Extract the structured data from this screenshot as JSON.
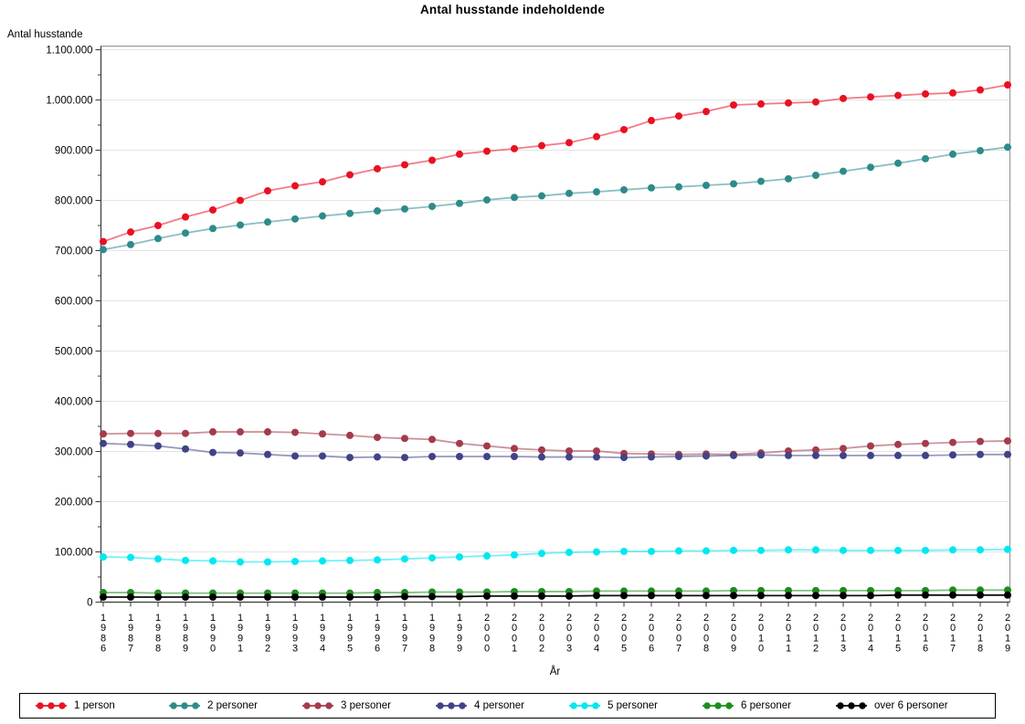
{
  "chart_data": {
    "type": "line",
    "title": "Antal husstande indeholdende",
    "ylabel": "Antal husstande",
    "xlabel": "År",
    "grid": "horizontal-major",
    "legend_position": "bottom",
    "ylim": [
      0,
      1100000
    ],
    "ytick_step": 100000,
    "ytick_minor_step": 50000,
    "ytick_labels": [
      "0",
      "100.000",
      "200.000",
      "300.000",
      "400.000",
      "500.000",
      "600.000",
      "700.000",
      "800.000",
      "900.000",
      "1.000.000",
      "1.100.000"
    ],
    "x": [
      "1986",
      "1987",
      "1988",
      "1989",
      "1990",
      "1991",
      "1992",
      "1993",
      "1994",
      "1995",
      "1996",
      "1997",
      "1998",
      "1999",
      "2000",
      "2001",
      "2002",
      "2003",
      "2004",
      "2005",
      "2006",
      "2007",
      "2008",
      "2009",
      "2010",
      "2011",
      "2012",
      "2013",
      "2014",
      "2015",
      "2016",
      "2017",
      "2018",
      "2019"
    ],
    "series": [
      {
        "name": "1 person",
        "color": "#e81123",
        "values": [
          718000,
          737000,
          750000,
          767000,
          781000,
          800000,
          819000,
          829000,
          837000,
          851000,
          863000,
          871000,
          880000,
          892000,
          898000,
          903000,
          909000,
          915000,
          927000,
          941000,
          959000,
          968000,
          977000,
          990000,
          992000,
          994000,
          996000,
          1003000,
          1006000,
          1009000,
          1012000,
          1014000,
          1020000,
          1030000
        ]
      },
      {
        "name": "2 personer",
        "color": "#2e8b8b",
        "values": [
          702000,
          712000,
          724000,
          735000,
          744000,
          751000,
          757000,
          763000,
          769000,
          774000,
          779000,
          783000,
          788000,
          794000,
          801000,
          806000,
          809000,
          814000,
          817000,
          821000,
          825000,
          827000,
          830000,
          833000,
          838000,
          843000,
          850000,
          858000,
          866000,
          874000,
          883000,
          892000,
          899000,
          906000
        ]
      },
      {
        "name": "3 personer",
        "color": "#a43b4b",
        "values": [
          335000,
          336000,
          336000,
          336000,
          339000,
          339000,
          339000,
          338000,
          335000,
          332000,
          328000,
          326000,
          324000,
          316000,
          311000,
          306000,
          303000,
          301000,
          301000,
          296000,
          295000,
          294000,
          295000,
          294000,
          297000,
          301000,
          303000,
          306000,
          311000,
          314000,
          316000,
          318000,
          320000,
          321000
        ]
      },
      {
        "name": "4 personer",
        "color": "#414287",
        "values": [
          316000,
          314000,
          311000,
          305000,
          298000,
          297000,
          294000,
          291000,
          291000,
          288000,
          289000,
          288000,
          290000,
          290000,
          290000,
          290000,
          289000,
          289000,
          289000,
          288000,
          289000,
          290000,
          291000,
          292000,
          293000,
          292000,
          292000,
          292000,
          292000,
          292000,
          292000,
          293000,
          294000,
          294000
        ]
      },
      {
        "name": "5 personer",
        "color": "#00e8f0",
        "values": [
          90000,
          89000,
          86000,
          83000,
          82000,
          80000,
          80000,
          81000,
          82000,
          83000,
          84000,
          86000,
          88000,
          90000,
          92000,
          94000,
          97000,
          99000,
          100000,
          101000,
          101000,
          102000,
          102000,
          103000,
          103000,
          104000,
          104000,
          103000,
          103000,
          103000,
          103000,
          104000,
          104000,
          105000
        ]
      },
      {
        "name": "6 personer",
        "color": "#1e8c1e",
        "values": [
          19000,
          19000,
          18000,
          18000,
          18000,
          18000,
          18000,
          18000,
          18000,
          18000,
          19000,
          19000,
          20000,
          20000,
          20000,
          21000,
          21000,
          21000,
          22000,
          22000,
          22000,
          22000,
          22000,
          23000,
          23000,
          23000,
          23000,
          23000,
          23000,
          23000,
          23000,
          24000,
          24000,
          24000
        ]
      },
      {
        "name": "over 6 personer",
        "color": "#000000",
        "values": [
          10000,
          10000,
          10000,
          10000,
          10000,
          10000,
          10000,
          10000,
          10000,
          10000,
          10000,
          11000,
          11000,
          11000,
          12000,
          12000,
          12000,
          12000,
          13000,
          13000,
          13000,
          13000,
          13000,
          13000,
          13000,
          13000,
          13000,
          13000,
          13000,
          14000,
          14000,
          14000,
          14000,
          14000
        ]
      }
    ]
  }
}
